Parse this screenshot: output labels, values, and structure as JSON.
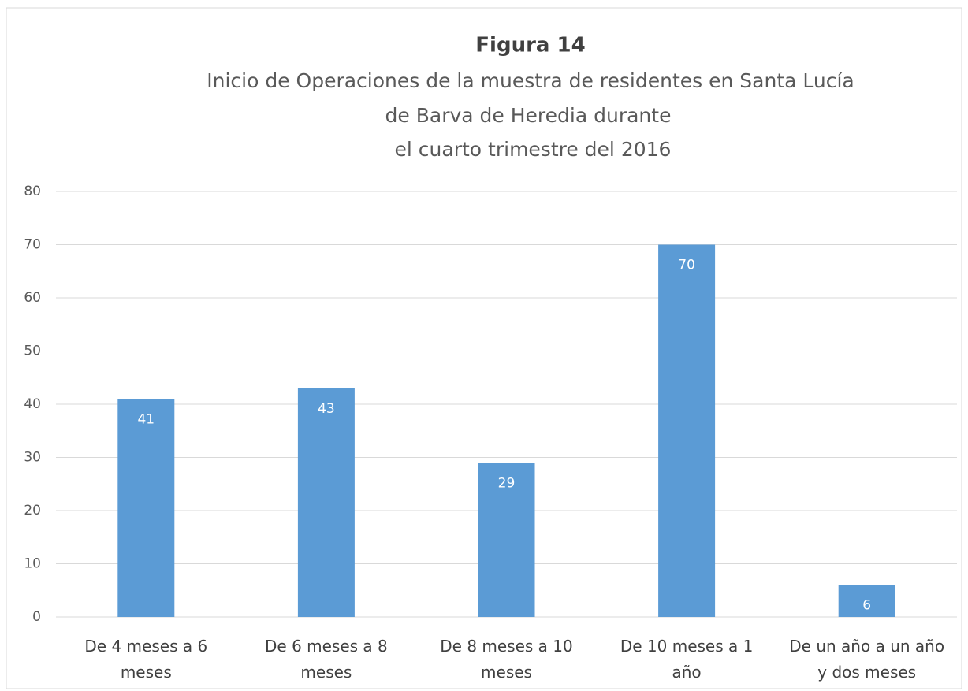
{
  "chart_data": {
    "type": "bar",
    "title": "Figura 14",
    "subtitle": [
      "Inicio de Operaciones de la muestra de residentes en Santa Lucía",
      "de Barva de Heredia durante",
      "el cuarto trimestre del 2016"
    ],
    "categories": [
      "De 4 meses a 6 meses",
      "De 6 meses a 8 meses",
      "De 8 meses a 10 meses",
      "De 10 meses a 1 año",
      "De un año a un año y dos meses"
    ],
    "values": [
      41,
      43,
      29,
      70,
      6
    ],
    "color": "#5b9bd5",
    "ylim": [
      0,
      80
    ],
    "yticks": [
      0,
      10,
      20,
      30,
      40,
      50,
      60,
      70,
      80
    ],
    "grid": true
  }
}
